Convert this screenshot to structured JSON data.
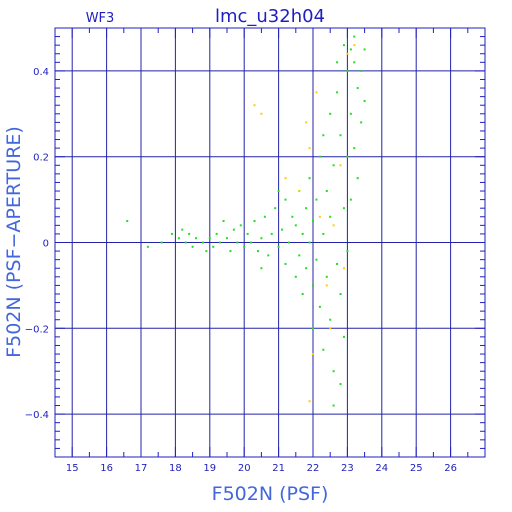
{
  "chart_data": {
    "type": "scatter",
    "title": "lmc_u32h04",
    "panel_label": "WF3",
    "xlabel": "F502N (PSF)",
    "ylabel": "F502N (PSF−APERTURE)",
    "xlim": [
      14.5,
      27
    ],
    "ylim": [
      -0.5,
      0.5
    ],
    "x_major_ticks": [
      15,
      16,
      17,
      18,
      19,
      20,
      21,
      22,
      23,
      24,
      25,
      26
    ],
    "x_gridlines": [
      15,
      16,
      17,
      18,
      19,
      20,
      21,
      22,
      23,
      24,
      25,
      26
    ],
    "y_major_ticks": [
      -0.4,
      -0.2,
      0,
      0.2,
      0.4
    ],
    "y_tick_labels": [
      "−0.4",
      "−0.2",
      "0",
      "0.2",
      "0.4"
    ],
    "grid": true,
    "colors": {
      "frame": "#1f1fbf",
      "grid": "#2323a8",
      "axis_title": "#4466dd"
    },
    "series": [
      {
        "color": "#22dd22",
        "points": [
          [
            16.6,
            0.05
          ],
          [
            17.2,
            -0.01
          ],
          [
            17.6,
            0.0
          ],
          [
            17.9,
            0.02
          ],
          [
            18.1,
            0.01
          ],
          [
            18.2,
            0.03
          ],
          [
            18.3,
            0.0
          ],
          [
            18.4,
            0.02
          ],
          [
            18.5,
            -0.01
          ],
          [
            18.6,
            0.01
          ],
          [
            18.8,
            0.0
          ],
          [
            18.9,
            -0.02
          ],
          [
            19.0,
            0.01
          ],
          [
            19.1,
            -0.01
          ],
          [
            19.2,
            0.02
          ],
          [
            19.3,
            0.0
          ],
          [
            19.5,
            0.01
          ],
          [
            19.6,
            -0.02
          ],
          [
            19.7,
            0.03
          ],
          [
            19.8,
            0.0
          ],
          [
            19.9,
            0.04
          ],
          [
            20.0,
            -0.01
          ],
          [
            20.1,
            0.02
          ],
          [
            20.2,
            0.0
          ],
          [
            20.3,
            0.05
          ],
          [
            20.4,
            -0.02
          ],
          [
            20.5,
            0.01
          ],
          [
            20.6,
            0.06
          ],
          [
            20.7,
            -0.03
          ],
          [
            20.8,
            0.02
          ],
          [
            20.9,
            0.08
          ],
          [
            21.0,
            -0.01
          ],
          [
            21.1,
            0.03
          ],
          [
            21.2,
            -0.05
          ],
          [
            21.2,
            0.1
          ],
          [
            21.3,
            0.0
          ],
          [
            21.4,
            0.06
          ],
          [
            21.5,
            -0.08
          ],
          [
            21.5,
            0.04
          ],
          [
            21.6,
            0.12
          ],
          [
            21.6,
            -0.03
          ],
          [
            21.7,
            0.02
          ],
          [
            21.7,
            -0.12
          ],
          [
            21.8,
            0.08
          ],
          [
            21.8,
            -0.06
          ],
          [
            21.9,
            0.15
          ],
          [
            21.9,
            0.0
          ],
          [
            22.0,
            -0.1
          ],
          [
            22.0,
            0.05
          ],
          [
            22.0,
            -0.2
          ],
          [
            22.1,
            0.1
          ],
          [
            22.1,
            -0.04
          ],
          [
            22.2,
            0.2
          ],
          [
            22.2,
            -0.15
          ],
          [
            22.3,
            0.02
          ],
          [
            22.3,
            -0.25
          ],
          [
            22.4,
            0.12
          ],
          [
            22.4,
            -0.08
          ],
          [
            22.5,
            0.3
          ],
          [
            22.5,
            -0.18
          ],
          [
            22.5,
            0.06
          ],
          [
            22.6,
            -0.3
          ],
          [
            22.6,
            0.18
          ],
          [
            22.7,
            -0.05
          ],
          [
            22.7,
            0.35
          ],
          [
            22.8,
            -0.12
          ],
          [
            22.8,
            0.25
          ],
          [
            22.9,
            -0.22
          ],
          [
            22.9,
            0.08
          ],
          [
            23.0,
            0.4
          ],
          [
            23.0,
            -0.02
          ],
          [
            23.0,
            0.2
          ],
          [
            23.1,
            0.45
          ],
          [
            23.1,
            0.3
          ],
          [
            23.1,
            0.1
          ],
          [
            23.2,
            0.42
          ],
          [
            23.2,
            0.22
          ],
          [
            23.3,
            0.36
          ],
          [
            23.3,
            0.15
          ],
          [
            23.4,
            0.4
          ],
          [
            23.4,
            0.28
          ],
          [
            23.5,
            0.33
          ],
          [
            23.5,
            0.45
          ],
          [
            22.3,
            0.25
          ],
          [
            22.6,
            -0.38
          ],
          [
            22.8,
            -0.33
          ],
          [
            21.0,
            0.12
          ],
          [
            20.5,
            -0.06
          ],
          [
            19.4,
            0.05
          ],
          [
            22.9,
            0.46
          ],
          [
            23.2,
            0.48
          ],
          [
            22.7,
            0.42
          ]
        ]
      },
      {
        "color": "#ffcc00",
        "points": [
          [
            20.3,
            0.32
          ],
          [
            20.5,
            0.3
          ],
          [
            21.8,
            0.28
          ],
          [
            21.9,
            0.22
          ],
          [
            22.0,
            -0.26
          ],
          [
            21.9,
            -0.37
          ],
          [
            22.2,
            0.06
          ],
          [
            22.4,
            -0.1
          ],
          [
            22.6,
            0.04
          ],
          [
            22.8,
            0.18
          ],
          [
            23.0,
            0.44
          ],
          [
            23.2,
            0.46
          ],
          [
            22.5,
            -0.2
          ],
          [
            21.6,
            0.12
          ],
          [
            22.1,
            0.35
          ],
          [
            22.9,
            -0.06
          ],
          [
            21.2,
            0.15
          ]
        ]
      }
    ]
  }
}
